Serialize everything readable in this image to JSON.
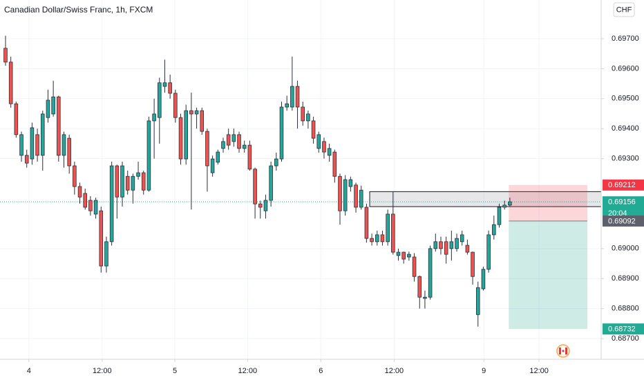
{
  "chart_data": {
    "type": "candlestick",
    "title": "Canadian Dollar/Swiss Franc, 1h, FXCM",
    "currency": "CHF",
    "up_color": "#26a69a",
    "down_color": "#ef5350",
    "open": [
      0.69668,
      0.69622,
      0.69483,
      0.69311,
      0.69311,
      0.69299,
      0.6938,
      0.69311,
      0.69437,
      0.69449,
      0.69506,
      0.69311,
      0.69368,
      0.69276,
      0.69207,
      0.69184,
      0.69161,
      0.69115,
      0.69126,
      0.68942,
      0.69023,
      0.69276,
      0.69172,
      0.69241,
      0.69195,
      0.69241,
      0.69253,
      0.69195,
      0.69426,
      0.69437,
      0.69541,
      0.69553,
      0.69518,
      0.69437,
      0.69299,
      0.6946,
      0.69449,
      0.6946,
      0.69391,
      0.69253,
      0.69288,
      0.69334,
      0.6938,
      0.69357,
      0.6938,
      0.69334,
      0.69345,
      0.69265,
      0.69149,
      0.69126,
      0.69161,
      0.69276,
      0.69299,
      0.69472,
      0.69472,
      0.69541,
      0.69472,
      0.69426,
      0.69426,
      0.69334,
      0.69357,
      0.69311,
      0.69322,
      0.69241,
      0.69126,
      0.69207,
      0.69212,
      0.69138,
      0.69138,
      0.69034,
      0.69023,
      0.69046,
      0.69023,
      0.69115,
      0.68977,
      0.68988,
      0.68972,
      0.68972,
      0.68907,
      0.68834,
      0.68838,
      0.69,
      0.69023,
      0.69023,
      0.69,
      0.69,
      0.69023,
      0.69011,
      0.68988,
      0.6878,
      0.68866,
      0.68931,
      0.69046,
      0.6908,
      0.69138,
      0.69145
    ],
    "high": [
      0.6971,
      0.6964,
      0.6949,
      0.6939,
      0.6933,
      0.6942,
      0.694,
      0.6946,
      0.6953,
      0.6956,
      0.6951,
      0.6939,
      0.6938,
      0.6929,
      0.6922,
      0.692,
      0.69175,
      0.6917,
      0.6914,
      0.6904,
      0.6929,
      0.6928,
      0.6929,
      0.6926,
      0.6925,
      0.6929,
      0.6926,
      0.6944,
      0.695,
      0.6957,
      0.6963,
      0.6958,
      0.6953,
      0.6945,
      0.6948,
      0.6952,
      0.6947,
      0.6947,
      0.694,
      0.6931,
      0.6933,
      0.6937,
      0.694,
      0.694,
      0.6939,
      0.6936,
      0.6936,
      0.6927,
      0.6916,
      0.6918,
      0.6929,
      0.6932,
      0.6949,
      0.6951,
      0.6964,
      0.6956,
      0.6949,
      0.6946,
      0.6944,
      0.6939,
      0.6937,
      0.6935,
      0.6933,
      0.6925,
      0.69245,
      0.6924,
      0.6922,
      0.6921,
      0.6915,
      0.6905,
      0.6906,
      0.6906,
      0.6913,
      0.6919,
      0.69,
      0.6899,
      0.6899,
      0.68985,
      0.6891,
      0.6886,
      0.6901,
      0.6905,
      0.6904,
      0.6904,
      0.6906,
      0.6905,
      0.6906,
      0.6903,
      0.6899,
      0.6889,
      0.6894,
      0.6906,
      0.6911,
      0.6915,
      0.6916,
      0.6917
    ],
    "low": [
      0.6961,
      0.6947,
      0.6937,
      0.6929,
      0.6927,
      0.6928,
      0.6929,
      0.6926,
      0.6942,
      0.6944,
      0.6929,
      0.6927,
      0.6925,
      0.6918,
      0.6915,
      0.6913,
      0.6911,
      0.691,
      0.6892,
      0.6892,
      0.6901,
      0.691,
      0.6914,
      0.6918,
      0.6915,
      0.6923,
      0.6918,
      0.6919,
      0.693,
      0.6935,
      0.6952,
      0.695,
      0.6942,
      0.6928,
      0.6928,
      0.6913,
      0.694,
      0.6938,
      0.6919,
      0.6924,
      0.6928,
      0.6932,
      0.6933,
      0.6934,
      0.6932,
      0.6932,
      0.6926,
      0.691,
      0.691,
      0.691,
      0.6914,
      0.6926,
      0.6929,
      0.6946,
      0.6946,
      0.694,
      0.6941,
      0.694,
      0.6935,
      0.6932,
      0.693,
      0.6929,
      0.6922,
      0.6908,
      0.6911,
      0.6919,
      0.6912,
      0.6913,
      0.6902,
      0.6901,
      0.6901,
      0.6901,
      0.6901,
      0.6898,
      0.6896,
      0.6895,
      0.6896,
      0.6889,
      0.688,
      0.688,
      0.6883,
      0.6899,
      0.6898,
      0.6895,
      0.6896,
      0.6899,
      0.6901,
      0.6898,
      0.6888,
      0.6874,
      0.6886,
      0.6892,
      0.6903,
      0.6907,
      0.6913,
      0.6914
    ],
    "close": [
      0.69622,
      0.69483,
      0.6938,
      0.6938,
      0.69285,
      0.69403,
      0.69311,
      0.69449,
      0.69495,
      0.69506,
      0.69311,
      0.6938,
      0.69276,
      0.69207,
      0.69172,
      0.69138,
      0.69126,
      0.69161,
      0.68942,
      0.69023,
      0.69276,
      0.69172,
      0.69276,
      0.69195,
      0.69241,
      0.69253,
      0.69195,
      0.69426,
      0.69449,
      0.69553,
      0.69553,
      0.69518,
      0.69437,
      0.69299,
      0.6946,
      0.69449,
      0.6946,
      0.69391,
      0.69276,
      0.69299,
      0.69322,
      0.69357,
      0.69345,
      0.6938,
      0.69334,
      0.69345,
      0.69265,
      0.69149,
      0.69138,
      0.69161,
      0.69276,
      0.69299,
      0.69472,
      0.69483,
      0.69541,
      0.69472,
      0.69426,
      0.69449,
      0.69368,
      0.6938,
      0.69322,
      0.69334,
      0.69241,
      0.69126,
      0.6923,
      0.6923,
      0.69138,
      0.69195,
      0.69034,
      0.69023,
      0.69046,
      0.69023,
      0.69115,
      0.68988,
      0.68988,
      0.68965,
      0.68981,
      0.68907,
      0.68838,
      0.68838,
      0.69,
      0.69023,
      0.69,
      0.68981,
      0.69023,
      0.69034,
      0.69046,
      0.68988,
      0.68907,
      0.6887,
      0.68931,
      0.69046,
      0.6908,
      0.69138,
      0.69145,
      0.69156
    ],
    "xlim": [
      -1.04,
      112.2
    ],
    "ylim": [
      0.68631,
      0.69829
    ],
    "xticks": [
      {
        "value": 4.4,
        "label": "4"
      },
      {
        "value": 18.2,
        "label": "12:00"
      },
      {
        "value": 31.9,
        "label": "5"
      },
      {
        "value": 45.6,
        "label": "12:00"
      },
      {
        "value": 59.4,
        "label": "6"
      },
      {
        "value": 73.2,
        "label": "12:00"
      },
      {
        "value": 90.1,
        "label": "9"
      },
      {
        "value": 100.5,
        "label": "12:00"
      }
    ],
    "yticks": [
      {
        "value": 0.697,
        "label": "0.69700"
      },
      {
        "value": 0.696,
        "label": "0.69600"
      },
      {
        "value": 0.695,
        "label": "0.69500"
      },
      {
        "value": 0.694,
        "label": "0.69400"
      },
      {
        "value": 0.693,
        "label": "0.69300"
      },
      {
        "value": 0.69,
        "label": "0.69000"
      },
      {
        "value": 0.689,
        "label": "0.68900"
      },
      {
        "value": 0.688,
        "label": "0.68800"
      },
      {
        "value": 0.687,
        "label": "0.68700"
      }
    ],
    "grid": true,
    "zone": {
      "start": 68.6,
      "low": 0.6914,
      "high": 0.6919
    },
    "position": {
      "start": 94.8,
      "end": 109.6,
      "stop": 0.69212,
      "entry": 0.69092,
      "target": 0.68732
    },
    "price_labels": [
      {
        "value": 0.69212,
        "label": "0.69212",
        "color": "#f23645"
      },
      {
        "value": 0.69156,
        "label": "0.69156",
        "color": "#22ab94"
      },
      {
        "value": 0.69092,
        "label": "0.69092",
        "color": "#5d606b"
      },
      {
        "value": 0.68732,
        "label": "0.68732",
        "color": "#22ab94"
      }
    ],
    "countdown": "20:04"
  }
}
